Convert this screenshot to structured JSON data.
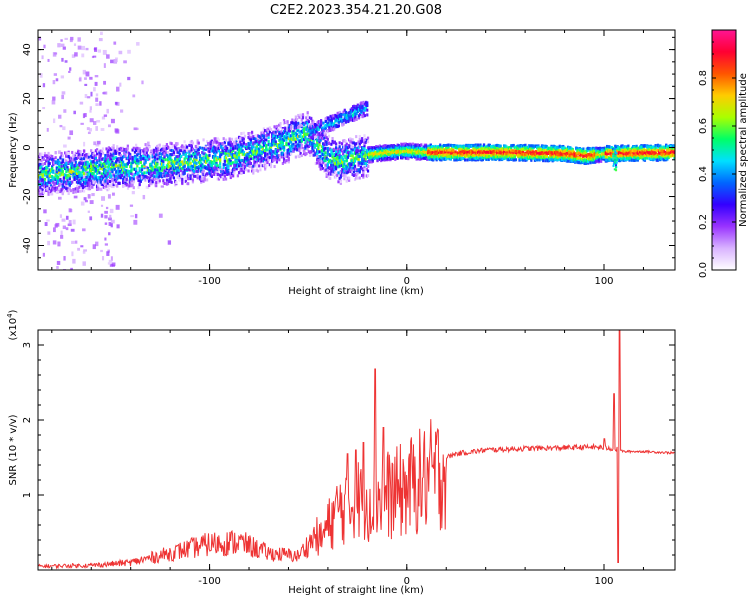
{
  "title": "C2E2.2023.354.21.20.G08",
  "chart_data": [
    {
      "type": "heatmap",
      "xlabel": "Height of straight line (km)",
      "ylabel": "Frequency (Hz)",
      "xlim": [
        -187,
        136
      ],
      "ylim": [
        -50,
        48
      ],
      "xticks": [
        -100,
        0,
        100
      ],
      "xtick_labels": [
        "-100",
        "0",
        "100"
      ],
      "yticks": [
        -40,
        -20,
        0,
        20,
        40
      ],
      "ytick_labels": [
        "-40",
        "-20",
        "0",
        "20",
        "40"
      ],
      "colorbar": {
        "label": "Normalized spectral amplitude",
        "range": [
          0,
          1
        ],
        "ticks": [
          0.0,
          0.2,
          0.4,
          0.6,
          0.8
        ],
        "tick_labels": [
          "0.0",
          "0.2",
          "0.4",
          "0.6",
          "0.8"
        ],
        "colormap": [
          "#ffffff",
          "#d9b3ff",
          "#9933ff",
          "#3300ff",
          "#0066ff",
          "#00e0ff",
          "#00ff66",
          "#aaff00",
          "#ffcc00",
          "#ff5500",
          "#ff0033",
          "#ff1493"
        ]
      },
      "trend": [
        {
          "x": -187,
          "y": -11
        },
        {
          "x": -170,
          "y": -10
        },
        {
          "x": -150,
          "y": -8
        },
        {
          "x": -130,
          "y": -7.5
        },
        {
          "x": -110,
          "y": -6
        },
        {
          "x": -90,
          "y": -4
        },
        {
          "x": -75,
          "y": -1
        },
        {
          "x": -60,
          "y": 3
        },
        {
          "x": -50,
          "y": 6
        },
        {
          "x": -45,
          "y": 0
        },
        {
          "x": -40,
          "y": -4
        },
        {
          "x": -35,
          "y": -6
        },
        {
          "x": -20,
          "y": -3
        },
        {
          "x": -10,
          "y": -2
        },
        {
          "x": 0,
          "y": -1.5
        },
        {
          "x": 10,
          "y": -2
        },
        {
          "x": 50,
          "y": -2
        },
        {
          "x": 80,
          "y": -2.5
        },
        {
          "x": 90,
          "y": -3.5
        },
        {
          "x": 100,
          "y": -2.5
        },
        {
          "x": 136,
          "y": -2
        }
      ],
      "grid": false
    },
    {
      "type": "line",
      "xlabel": "Height of straight line (km)",
      "ylabel": "SNR (10 * v/v)",
      "y_multiplier": "(x10^4)",
      "xlim": [
        -187,
        136
      ],
      "ylim": [
        0,
        3.2
      ],
      "xticks": [
        -100,
        0,
        100
      ],
      "xtick_labels": [
        "-100",
        "0",
        "100"
      ],
      "yticks": [
        1,
        2,
        3
      ],
      "ytick_labels": [
        "1",
        "2",
        "3"
      ],
      "color": "#ee3333",
      "envelope": [
        {
          "x": -187,
          "y": 0.04
        },
        {
          "x": -160,
          "y": 0.05
        },
        {
          "x": -140,
          "y": 0.08
        },
        {
          "x": -120,
          "y": 0.18
        },
        {
          "x": -100,
          "y": 0.28
        },
        {
          "x": -85,
          "y": 0.3
        },
        {
          "x": -70,
          "y": 0.18
        },
        {
          "x": -55,
          "y": 0.15
        },
        {
          "x": -45,
          "y": 0.4
        },
        {
          "x": -35,
          "y": 0.9
        },
        {
          "x": -25,
          "y": 1.05
        },
        {
          "x": -15,
          "y": 1.1
        },
        {
          "x": -5,
          "y": 1.15
        },
        {
          "x": 5,
          "y": 1.3
        },
        {
          "x": 15,
          "y": 1.45
        },
        {
          "x": 25,
          "y": 1.55
        },
        {
          "x": 40,
          "y": 1.6
        },
        {
          "x": 60,
          "y": 1.62
        },
        {
          "x": 80,
          "y": 1.63
        },
        {
          "x": 95,
          "y": 1.64
        },
        {
          "x": 105,
          "y": 1.62
        },
        {
          "x": 110,
          "y": 1.58
        },
        {
          "x": 120,
          "y": 1.58
        },
        {
          "x": 136,
          "y": 1.56
        }
      ],
      "spikes": [
        {
          "x": -30,
          "y": 1.55
        },
        {
          "x": -26,
          "y": 1.6
        },
        {
          "x": -22,
          "y": 1.7
        },
        {
          "x": -16,
          "y": 2.68
        },
        {
          "x": -12,
          "y": 1.9
        },
        {
          "x": 100,
          "y": 1.75
        },
        {
          "x": 105,
          "y": 2.35
        },
        {
          "x": 108,
          "y": 3.2
        },
        {
          "x": 107,
          "y": 0.1
        }
      ],
      "grid": false
    }
  ]
}
